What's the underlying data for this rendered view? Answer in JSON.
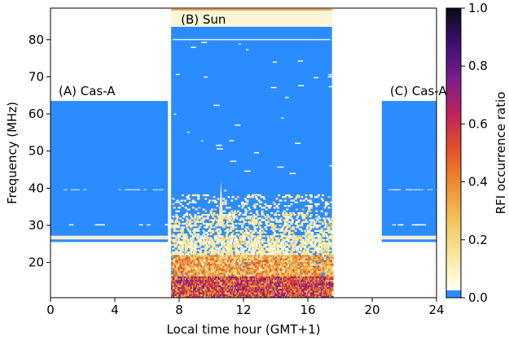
{
  "chart_data": {
    "type": "heatmap",
    "xlabel": "Local time hour (GMT+1)",
    "ylabel": "Frequency (MHz)",
    "xlim": [
      0,
      24
    ],
    "ylim": [
      10.5,
      88.5
    ],
    "xticks": [
      0,
      4,
      8,
      12,
      16,
      20,
      24
    ],
    "yticks": [
      20,
      30,
      40,
      50,
      60,
      70,
      80
    ],
    "colorbar": {
      "label": "RFI occurrence ratio",
      "range": [
        0.0,
        1.0
      ],
      "ticks": [
        "0.0",
        "0.2",
        "0.4",
        "0.6",
        "0.8",
        "1.0"
      ],
      "colormap": [
        "#fffff0",
        "#f8e8a0",
        "#f2c25a",
        "#ee8a2e",
        "#e4502a",
        "#c0245a",
        "#7a1e8c",
        "#3a1070",
        "#0a0a14"
      ],
      "zero_color": "#2b8cff"
    },
    "observations": [
      {
        "label": "(A) Cas-A",
        "time_range": [
          0.0,
          7.3
        ],
        "freq_range": [
          25.5,
          63.5
        ]
      },
      {
        "label": "(B) Sun",
        "time_range": [
          7.5,
          17.5
        ],
        "freq_range": [
          10.5,
          88.5
        ],
        "clean_top_mhz": 83.5
      },
      {
        "label": "(C) Cas-A",
        "time_range": [
          20.6,
          24.0
        ],
        "freq_range": [
          25.5,
          63.5
        ]
      }
    ],
    "zero_rfi_color": "#2b8cff"
  }
}
